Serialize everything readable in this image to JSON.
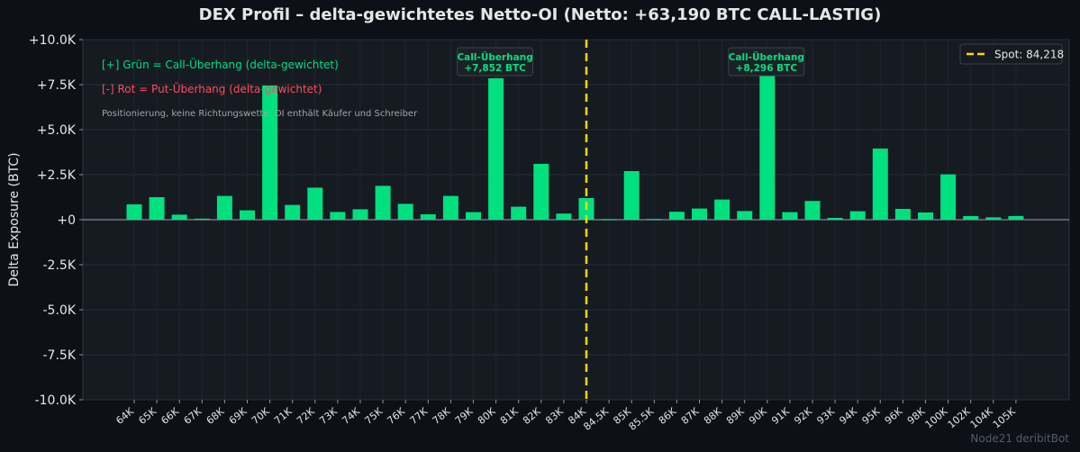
{
  "title": "DEX Profil – delta-gewichtetes Netto-OI (Netto: +63,190 BTC CALL-LASTIG)",
  "watermark": "Node21 deribitBot",
  "colors": {
    "background": "#0d1117",
    "plot_bg": "#161b22",
    "call": "#00e07f",
    "put": "#ff4d5e",
    "spot": "#ffd700",
    "text": "#e6e6e6",
    "subtle": "#a0a4ab"
  },
  "annotations": {
    "green_note": "[+] Grün = Call-Überhang (delta-gewichtet)",
    "red_note": "[-] Rot = Put-Überhang (delta-gewichtet)",
    "info_note": "Positionierung, keine Richtungswette. OI enthält Käufer und Schreiber",
    "callouts": [
      {
        "line1": "Call-Überhang",
        "line2": "+7,852 BTC",
        "category": "80K"
      },
      {
        "line1": "Call-Überhang",
        "line2": "+8,296 BTC",
        "category": "90K"
      }
    ]
  },
  "chart_data": {
    "type": "bar",
    "title": "DEX Profil – delta-gewichtetes Netto-OI (Netto: +63,190 BTC CALL-LASTIG)",
    "xlabel": "",
    "ylabel": "Delta Exposure (BTC)",
    "ylim": [
      -10000,
      10000
    ],
    "yticks": [
      10000,
      7500,
      5000,
      2500,
      0,
      -2500,
      -5000,
      -7500,
      -10000
    ],
    "ytick_labels": [
      "+10.0K",
      "+7.5K",
      "+5.0K",
      "+2.5K",
      "+0",
      "-2.5K",
      "-5.0K",
      "-7.5K",
      "-10.0K"
    ],
    "categories": [
      "64K",
      "65K",
      "66K",
      "67K",
      "68K",
      "69K",
      "70K",
      "71K",
      "72K",
      "73K",
      "74K",
      "75K",
      "76K",
      "77K",
      "78K",
      "79K",
      "80K",
      "81K",
      "82K",
      "83K",
      "84K",
      "84.5K",
      "85K",
      "85.5K",
      "86K",
      "87K",
      "88K",
      "89K",
      "90K",
      "91K",
      "92K",
      "93K",
      "94K",
      "95K",
      "96K",
      "98K",
      "100K",
      "102K",
      "104K",
      "105K"
    ],
    "values": [
      850,
      1250,
      280,
      60,
      1320,
      520,
      7450,
      820,
      1780,
      430,
      580,
      1880,
      880,
      300,
      1320,
      420,
      7852,
      720,
      3100,
      340,
      1200,
      30,
      2700,
      40,
      440,
      620,
      1120,
      480,
      8296,
      420,
      1040,
      100,
      470,
      3950,
      600,
      400,
      2520,
      200,
      130,
      200
    ],
    "grid": true,
    "legend": {
      "position": "top-right",
      "entries": [
        "Spot: 84,218"
      ]
    },
    "spot_category": "84K"
  }
}
